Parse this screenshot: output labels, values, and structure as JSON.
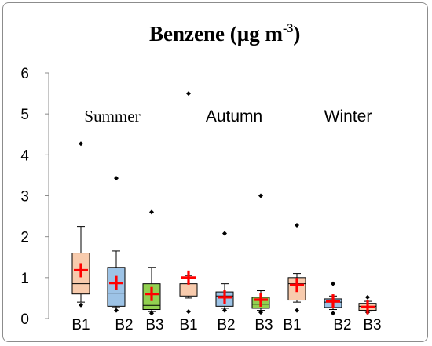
{
  "chart_data": {
    "type": "box",
    "title": "Benzene (µg m",
    "title_superscript": "-3",
    "title_close": ")",
    "xlabel": "",
    "ylabel": "",
    "ylim": [
      0,
      6
    ],
    "yticks": [
      "0",
      "1",
      "2",
      "3",
      "4",
      "5",
      "6"
    ],
    "grid": false,
    "groups": [
      {
        "label": "Summer",
        "categories": [
          "B1",
          "B2",
          "B3"
        ]
      },
      {
        "label": "Autumn",
        "categories": [
          "B1",
          "B2",
          "B3"
        ]
      },
      {
        "label": "Winter",
        "categories": [
          "B1",
          "B2",
          "B3"
        ]
      }
    ],
    "boxes": [
      {
        "season": "Summer",
        "category": "B1",
        "color": "#f8cbad",
        "whisker_low": 0.4,
        "q1": 0.6,
        "median": 0.85,
        "q3": 1.6,
        "whisker_high": 2.25,
        "mean": 1.18,
        "outliers": [
          0.33,
          4.27
        ]
      },
      {
        "season": "Summer",
        "category": "B2",
        "color": "#9dc3e6",
        "whisker_low": 0.27,
        "q1": 0.3,
        "median": 0.62,
        "q3": 1.25,
        "whisker_high": 1.65,
        "mean": 0.87,
        "outliers": [
          0.2,
          3.43
        ]
      },
      {
        "season": "Summer",
        "category": "B3",
        "color": "#92d050",
        "whisker_low": 0.17,
        "q1": 0.22,
        "median": 0.32,
        "q3": 0.85,
        "whisker_high": 1.25,
        "mean": 0.6,
        "outliers": [
          0.13,
          2.6
        ]
      },
      {
        "season": "Autumn",
        "category": "B1",
        "color": "#f8cbad",
        "whisker_low": 0.5,
        "q1": 0.55,
        "median": 0.7,
        "q3": 0.85,
        "whisker_high": 1.05,
        "mean": 1.0,
        "outliers": [
          0.17,
          5.5
        ]
      },
      {
        "season": "Autumn",
        "category": "B2",
        "color": "#9dc3e6",
        "whisker_low": 0.25,
        "q1": 0.3,
        "median": 0.55,
        "q3": 0.65,
        "whisker_high": 0.85,
        "mean": 0.52,
        "outliers": [
          0.2,
          2.08
        ]
      },
      {
        "season": "Autumn",
        "category": "B3",
        "color": "#92d050",
        "whisker_low": 0.2,
        "q1": 0.25,
        "median": 0.35,
        "q3": 0.52,
        "whisker_high": 0.68,
        "mean": 0.46,
        "outliers": [
          0.15,
          3.0
        ]
      },
      {
        "season": "Winter",
        "category": "B1",
        "color": "#f8cbad",
        "whisker_low": 0.4,
        "q1": 0.45,
        "median": 0.85,
        "q3": 1.0,
        "whisker_high": 1.1,
        "mean": 0.82,
        "outliers": [
          0.2,
          2.28
        ]
      },
      {
        "season": "Winter",
        "category": "B2",
        "color": "#9dc3e6",
        "whisker_low": 0.22,
        "q1": 0.27,
        "median": 0.4,
        "q3": 0.48,
        "whisker_high": 0.55,
        "mean": 0.42,
        "outliers": [
          0.13,
          0.85
        ]
      },
      {
        "season": "Winter",
        "category": "B3",
        "color": "#f8cbad",
        "whisker_low": 0.18,
        "q1": 0.2,
        "median": 0.3,
        "q3": 0.37,
        "whisker_high": 0.42,
        "mean": 0.28,
        "outliers": [
          0.15,
          0.52
        ]
      }
    ],
    "mean_marker_color": "#ff0000",
    "outlier_color": "#000000"
  }
}
